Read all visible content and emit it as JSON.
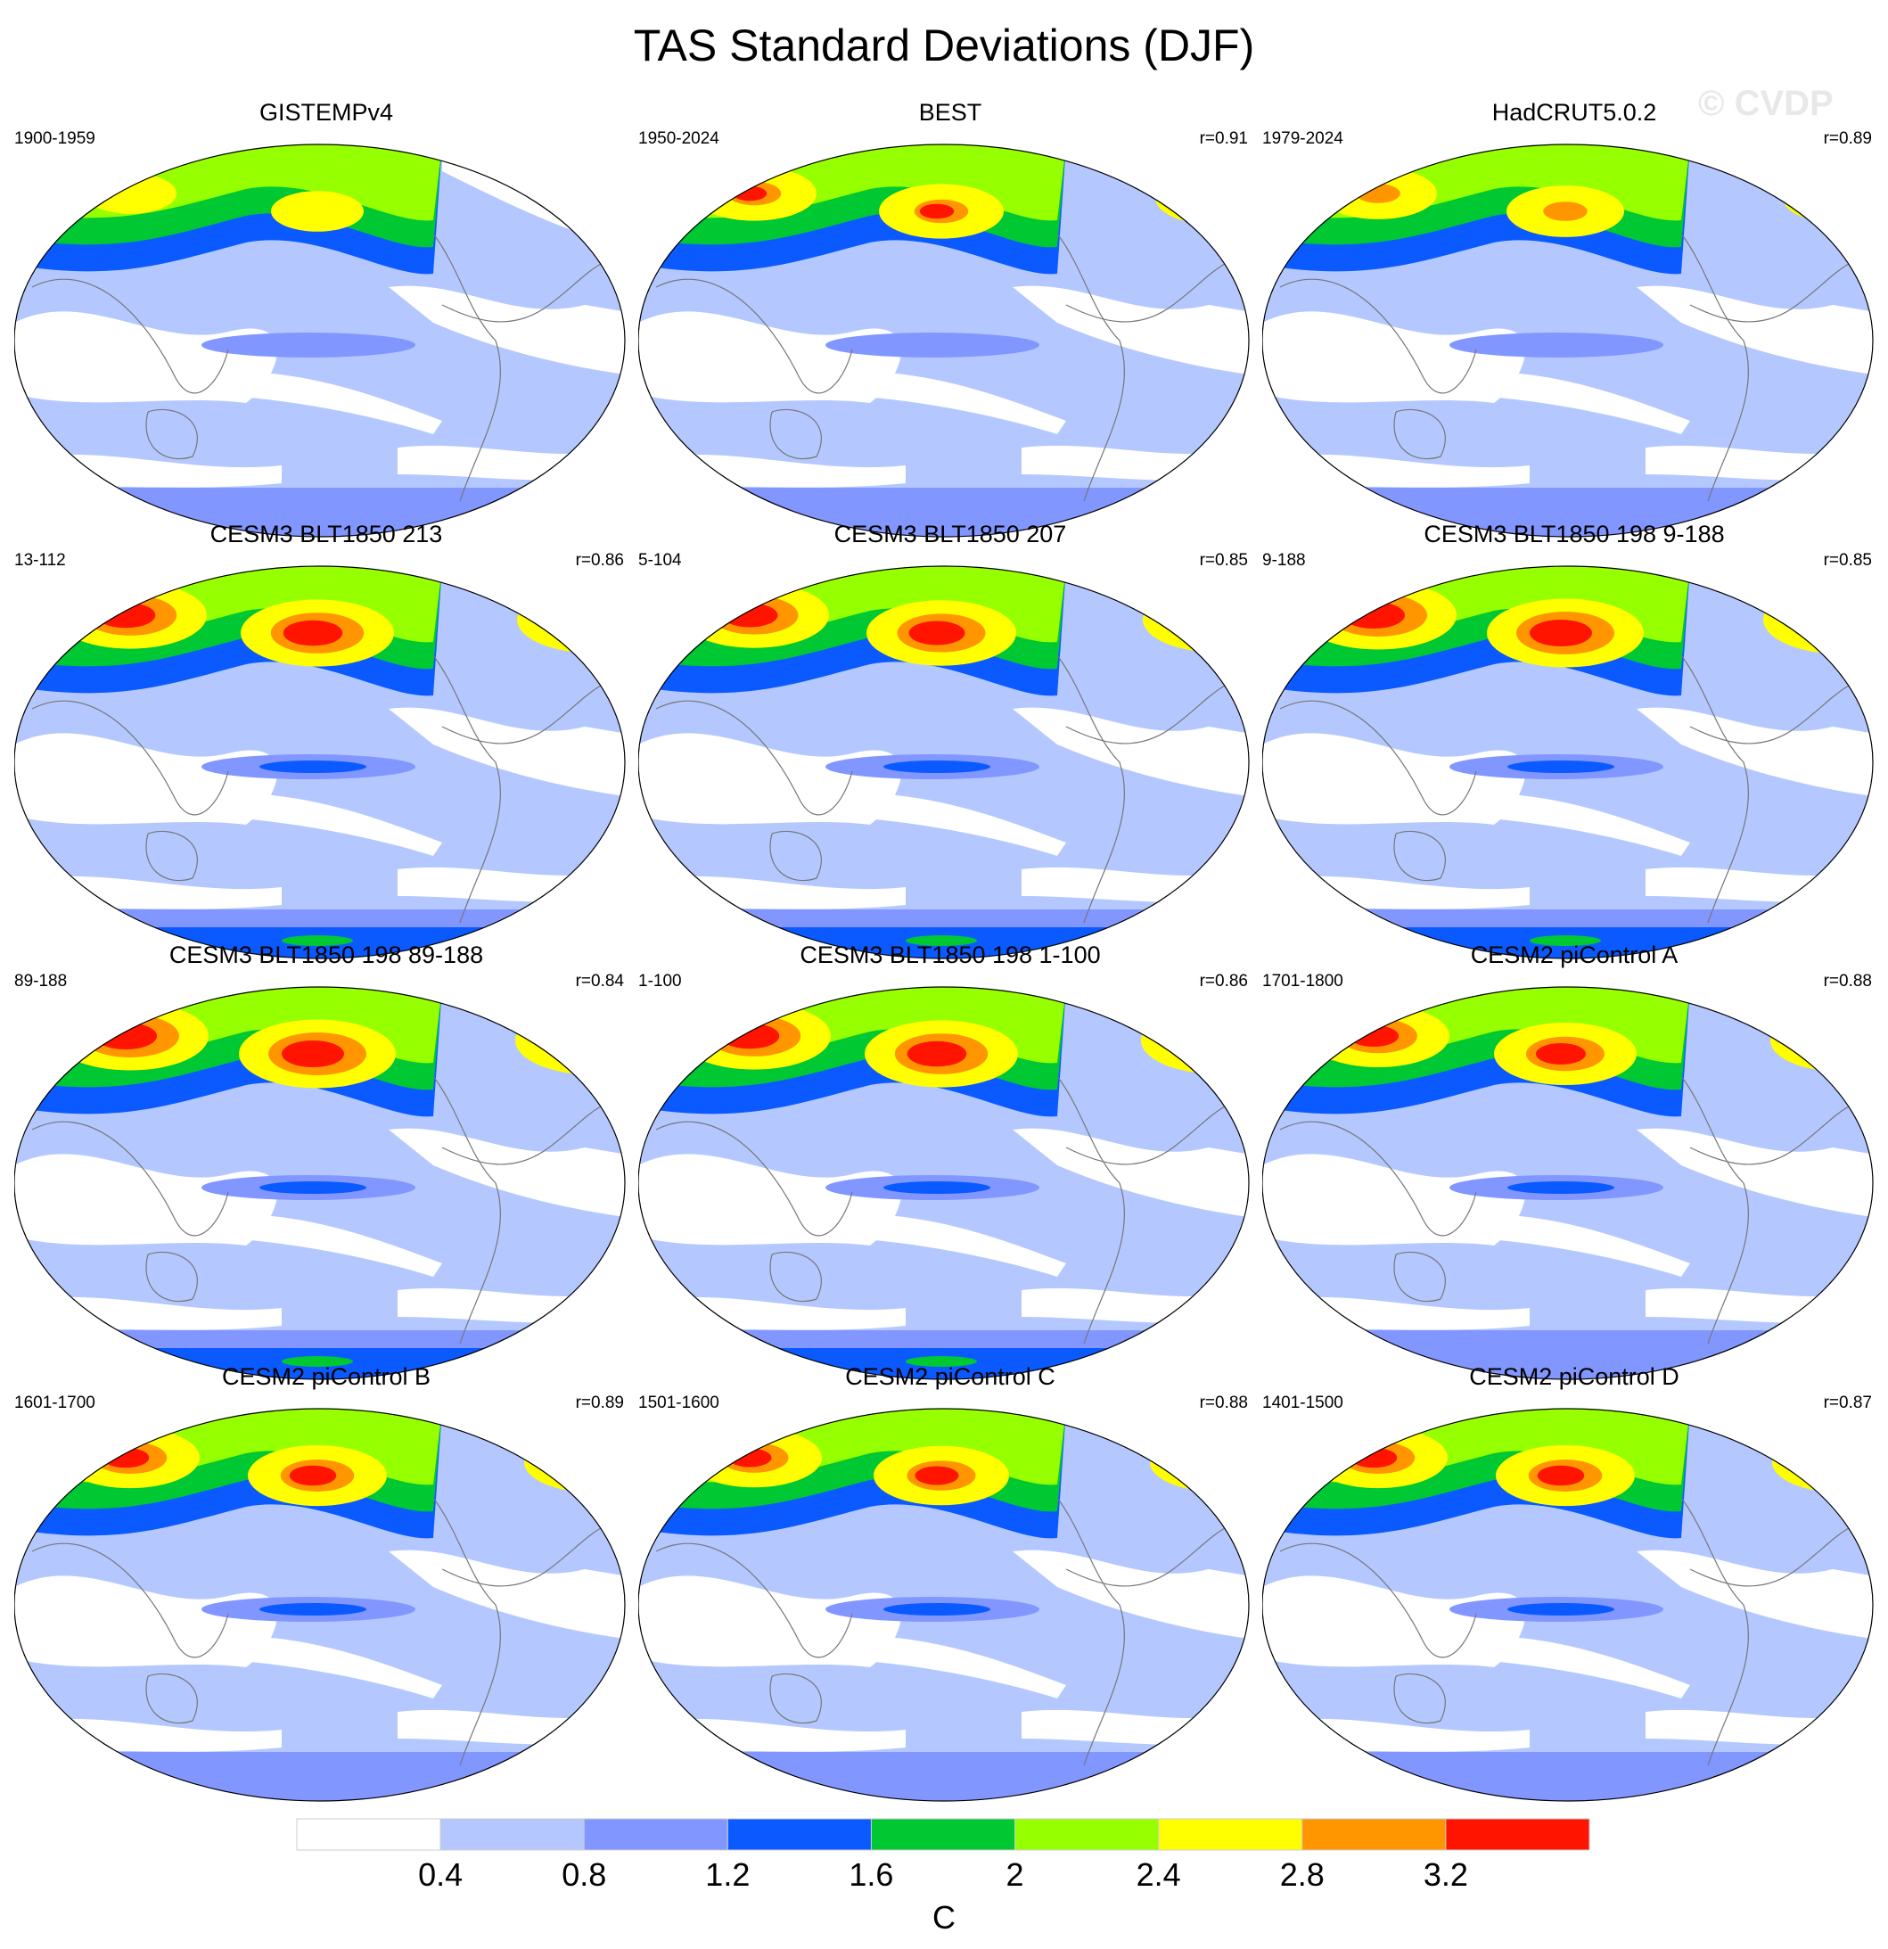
{
  "title": "TAS Standard Deviations (DJF)",
  "watermark": "© CVDP",
  "units": "C",
  "colorbar": {
    "levels": [
      "0.4",
      "0.8",
      "1.2",
      "1.6",
      "2",
      "2.4",
      "2.8",
      "3.2"
    ],
    "colors": [
      "#ffffff",
      "#b4c8ff",
      "#8296ff",
      "#0a5aff",
      "#00c832",
      "#96ff00",
      "#ffff00",
      "#ff9600",
      "#ff1400"
    ]
  },
  "panels": [
    {
      "title": "GISTEMPv4",
      "period": "1900-1959",
      "r": "",
      "n_hot": 2,
      "hot": 0.1,
      "coverage": "partial-arctic"
    },
    {
      "title": "BEST",
      "period": "1950-2024",
      "r": "r=0.91",
      "n_hot": 4,
      "hot": 0.55,
      "coverage": "partial"
    },
    {
      "title": "HadCRUT5.0.2",
      "period": "1979-2024",
      "r": "r=0.89",
      "n_hot": 4,
      "hot": 0.45,
      "coverage": "partial"
    },
    {
      "title": "CESM3 BLT1850 213",
      "period": "13-112",
      "r": "r=0.86",
      "n_hot": 4,
      "hot": 0.95,
      "coverage": "full"
    },
    {
      "title": "CESM3 BLT1850 207",
      "period": "5-104",
      "r": "r=0.85",
      "n_hot": 4,
      "hot": 0.9,
      "coverage": "full"
    },
    {
      "title": "CESM3 BLT1850 198 9-188",
      "period": "9-188",
      "r": "r=0.85",
      "n_hot": 4,
      "hot": 1.0,
      "coverage": "full"
    },
    {
      "title": "CESM3 BLT1850 198 89-188",
      "period": "89-188",
      "r": "r=0.84",
      "n_hot": 4,
      "hot": 1.0,
      "coverage": "full"
    },
    {
      "title": "CESM3 BLT1850 198 1-100",
      "period": "1-100",
      "r": "r=0.86",
      "n_hot": 4,
      "hot": 0.95,
      "coverage": "full"
    },
    {
      "title": "CESM2 piControl A",
      "period": "1701-1800",
      "r": "r=0.88",
      "n_hot": 4,
      "hot": 0.8,
      "coverage": "model2"
    },
    {
      "title": "CESM2 piControl B",
      "period": "1601-1700",
      "r": "r=0.89",
      "n_hot": 4,
      "hot": 0.75,
      "coverage": "model2"
    },
    {
      "title": "CESM2 piControl C",
      "period": "1501-1600",
      "r": "r=0.88",
      "n_hot": 4,
      "hot": 0.7,
      "coverage": "model2"
    },
    {
      "title": "CESM2 piControl D",
      "period": "1401-1500",
      "r": "r=0.87",
      "n_hot": 4,
      "hot": 0.75,
      "coverage": "model2"
    }
  ]
}
